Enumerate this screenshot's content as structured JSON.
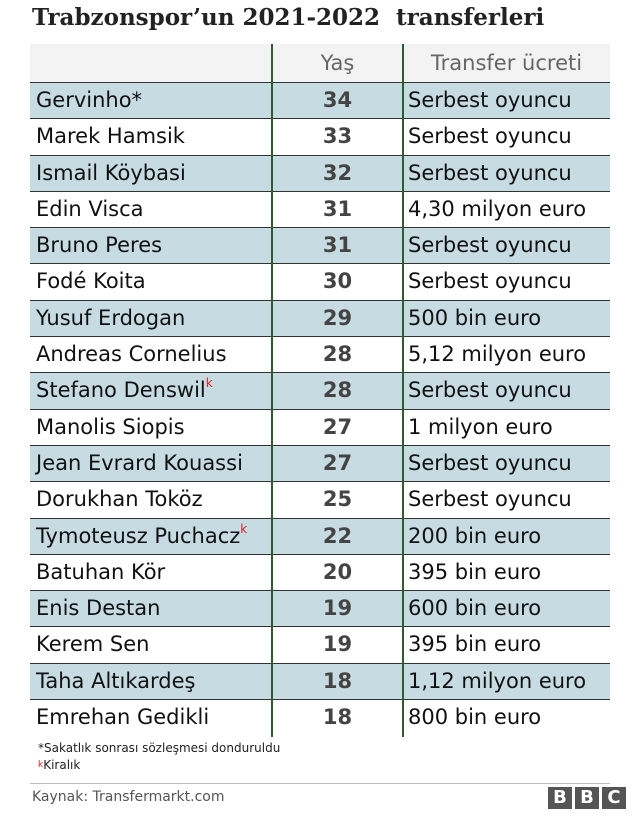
{
  "title": "Trabzonspor’un 2021-2022  transferleri",
  "table": {
    "header": [
      "Yaş",
      "Transfer ücreti"
    ],
    "rows": [
      {
        "name": "Gervinho*",
        "age": 34,
        "fee": "Serbest oyuncu"
      },
      {
        "name": "Marek Hamsik",
        "age": 33,
        "fee": "Serbest oyuncu"
      },
      {
        "name": "Ismail Köybasi",
        "age": 32,
        "fee": "Serbest oyuncu"
      },
      {
        "name": "Edin Visca",
        "age": 31,
        "fee": "4,30 milyon euro"
      },
      {
        "name": "Bruno Peres",
        "age": 31,
        "fee": "Serbest oyuncu"
      },
      {
        "name": "Fodé Koita",
        "age": 30,
        "fee": "Serbest oyuncu"
      },
      {
        "name": "Yusuf Erdogan",
        "age": 29,
        "fee": "500 bin euro"
      },
      {
        "name": "Andreas Cornelius",
        "age": 28,
        "fee": "5,12 milyon euro"
      },
      {
        "name": "Stefano Denswil",
        "mark": "k",
        "age": 28,
        "fee": "Serbest oyuncu"
      },
      {
        "name": "Manolis Siopis",
        "age": 27,
        "fee": "1 milyon euro"
      },
      {
        "name": "Jean Evrard Kouassi",
        "age": 27,
        "fee": "Serbest oyuncu"
      },
      {
        "name": "Dorukhan Toköz",
        "age": 25,
        "fee": "Serbest oyuncu"
      },
      {
        "name": "Tymoteusz Puchacz",
        "mark": "k",
        "age": 22,
        "fee": "200 bin euro"
      },
      {
        "name": "Batuhan Kör",
        "age": 20,
        "fee": "395 bin euro"
      },
      {
        "name": "Enis Destan",
        "age": 19,
        "fee": "600 bin euro"
      },
      {
        "name": "Kerem Sen",
        "age": 19,
        "fee": "395 bin euro"
      },
      {
        "name": "Taha Altıkardeş",
        "age": 18,
        "fee": "1,12 milyon euro"
      },
      {
        "name": "Emrehan Gedikli",
        "age": 18,
        "fee": "800 bin euro"
      }
    ]
  },
  "footnotes": [
    {
      "symbol": "*",
      "text": "Sakatlık sonrası sözleşmesi donduruldu"
    },
    {
      "symbol": "k",
      "text": "Kiralık"
    }
  ],
  "source": "Kaynak: Transfermarkt.com",
  "logo": [
    "B",
    "B",
    "C"
  ]
}
